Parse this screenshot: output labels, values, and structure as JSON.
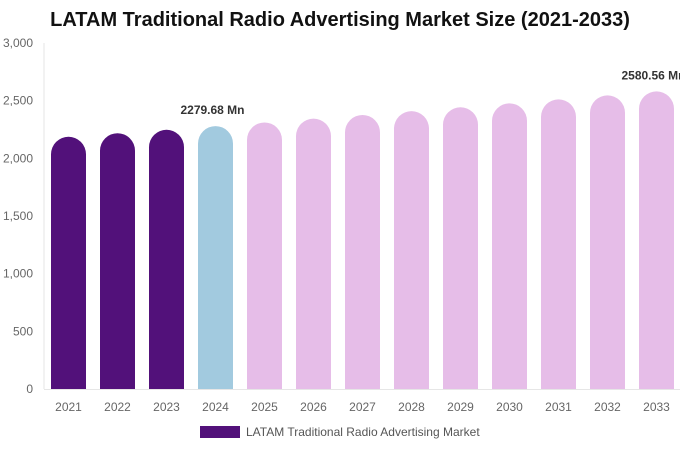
{
  "chart_data": {
    "type": "bar",
    "title": "LATAM Traditional Radio Advertising Market Size (2021-2033)",
    "categories": [
      "2021",
      "2022",
      "2023",
      "2024",
      "2025",
      "2026",
      "2027",
      "2028",
      "2029",
      "2030",
      "2031",
      "2032",
      "2033"
    ],
    "series": [
      {
        "name": "LATAM Traditional Radio Advertising Market",
        "values": [
          2187,
          2218,
          2248,
          2279.68,
          2311,
          2344,
          2376,
          2409,
          2443,
          2477,
          2511,
          2546,
          2580.56
        ]
      }
    ],
    "ylim": [
      0,
      3000
    ],
    "yticks": [
      0,
      500,
      1000,
      1500,
      2000,
      2500,
      3000
    ],
    "ytick_labels": [
      "0",
      "500",
      "1,000",
      "1,500",
      "2,000",
      "2,500",
      "3,000"
    ],
    "data_labels": [
      {
        "index": 3,
        "text": "2279.68 Mn"
      },
      {
        "index": 12,
        "text": "2580.56 Mn"
      }
    ],
    "colors": {
      "historical": "#52117a",
      "current": "#a2cadf",
      "forecast": "#e6bde8"
    },
    "grid": false,
    "legend": "bottom"
  }
}
